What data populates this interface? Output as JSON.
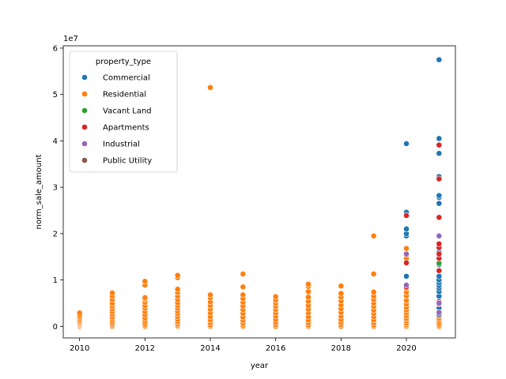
{
  "chart_data": {
    "type": "scatter",
    "title": "",
    "xlabel": "year",
    "ylabel": "norm_sale_amount",
    "y_scale_label": "1e7",
    "xlim": [
      2009.5,
      2021.5
    ],
    "ylim": [
      -2500000,
      60500000
    ],
    "x_ticks": [
      2010,
      2012,
      2014,
      2016,
      2018,
      2020
    ],
    "y_ticks": [
      0,
      10000000,
      20000000,
      30000000,
      40000000,
      50000000,
      60000000
    ],
    "y_tick_labels": [
      "0",
      "1",
      "2",
      "3",
      "4",
      "5",
      "6"
    ],
    "grid": false,
    "legend": {
      "title": "property_type",
      "placement": "top-left"
    },
    "series": [
      {
        "name": "Residential",
        "color": "#ff7f0e",
        "points": [
          [
            2010,
            0
          ],
          [
            2010,
            200000
          ],
          [
            2010,
            400000
          ],
          [
            2010,
            600000
          ],
          [
            2010,
            800000
          ],
          [
            2010,
            1000000
          ],
          [
            2010,
            1300000
          ],
          [
            2010,
            1600000
          ],
          [
            2010,
            2000000
          ],
          [
            2010,
            2400000
          ],
          [
            2010,
            2900000
          ],
          [
            2011,
            0
          ],
          [
            2011,
            300000
          ],
          [
            2011,
            600000
          ],
          [
            2011,
            1000000
          ],
          [
            2011,
            1500000
          ],
          [
            2011,
            2000000
          ],
          [
            2011,
            2600000
          ],
          [
            2011,
            3200000
          ],
          [
            2011,
            3800000
          ],
          [
            2011,
            4400000
          ],
          [
            2011,
            5000000
          ],
          [
            2011,
            5800000
          ],
          [
            2011,
            6500000
          ],
          [
            2011,
            7200000
          ],
          [
            2012,
            0
          ],
          [
            2012,
            300000
          ],
          [
            2012,
            700000
          ],
          [
            2012,
            1200000
          ],
          [
            2012,
            1800000
          ],
          [
            2012,
            2500000
          ],
          [
            2012,
            3200000
          ],
          [
            2012,
            3900000
          ],
          [
            2012,
            4500000
          ],
          [
            2012,
            5200000
          ],
          [
            2012,
            5900000
          ],
          [
            2012,
            6200000
          ],
          [
            2012,
            8900000
          ],
          [
            2012,
            9700000
          ],
          [
            2013,
            0
          ],
          [
            2013,
            200000
          ],
          [
            2013,
            500000
          ],
          [
            2013,
            1000000
          ],
          [
            2013,
            1500000
          ],
          [
            2013,
            2100000
          ],
          [
            2013,
            2700000
          ],
          [
            2013,
            3300000
          ],
          [
            2013,
            3900000
          ],
          [
            2013,
            4500000
          ],
          [
            2013,
            5100000
          ],
          [
            2013,
            5800000
          ],
          [
            2013,
            6500000
          ],
          [
            2013,
            7300000
          ],
          [
            2013,
            8000000
          ],
          [
            2013,
            10500000
          ],
          [
            2013,
            11000000
          ],
          [
            2014,
            0
          ],
          [
            2014,
            300000
          ],
          [
            2014,
            800000
          ],
          [
            2014,
            1400000
          ],
          [
            2014,
            2100000
          ],
          [
            2014,
            2900000
          ],
          [
            2014,
            3700000
          ],
          [
            2014,
            4500000
          ],
          [
            2014,
            5300000
          ],
          [
            2014,
            6200000
          ],
          [
            2014,
            6800000
          ],
          [
            2014,
            51500000
          ],
          [
            2015,
            0
          ],
          [
            2015,
            300000
          ],
          [
            2015,
            700000
          ],
          [
            2015,
            1300000
          ],
          [
            2015,
            2000000
          ],
          [
            2015,
            2800000
          ],
          [
            2015,
            3600000
          ],
          [
            2015,
            4400000
          ],
          [
            2015,
            5200000
          ],
          [
            2015,
            6000000
          ],
          [
            2015,
            6800000
          ],
          [
            2015,
            8500000
          ],
          [
            2015,
            11300000
          ],
          [
            2016,
            0
          ],
          [
            2016,
            400000
          ],
          [
            2016,
            900000
          ],
          [
            2016,
            1500000
          ],
          [
            2016,
            2200000
          ],
          [
            2016,
            2900000
          ],
          [
            2016,
            3600000
          ],
          [
            2016,
            4300000
          ],
          [
            2016,
            5000000
          ],
          [
            2016,
            5700000
          ],
          [
            2016,
            6400000
          ],
          [
            2017,
            0
          ],
          [
            2017,
            300000
          ],
          [
            2017,
            800000
          ],
          [
            2017,
            1400000
          ],
          [
            2017,
            2100000
          ],
          [
            2017,
            2900000
          ],
          [
            2017,
            3700000
          ],
          [
            2017,
            4500000
          ],
          [
            2017,
            5400000
          ],
          [
            2017,
            6300000
          ],
          [
            2017,
            7500000
          ],
          [
            2017,
            8600000
          ],
          [
            2017,
            9100000
          ],
          [
            2018,
            0
          ],
          [
            2018,
            400000
          ],
          [
            2018,
            900000
          ],
          [
            2018,
            1500000
          ],
          [
            2018,
            2200000
          ],
          [
            2018,
            3000000
          ],
          [
            2018,
            3800000
          ],
          [
            2018,
            4600000
          ],
          [
            2018,
            5500000
          ],
          [
            2018,
            6300000
          ],
          [
            2018,
            7100000
          ],
          [
            2018,
            8700000
          ],
          [
            2019,
            0
          ],
          [
            2019,
            300000
          ],
          [
            2019,
            800000
          ],
          [
            2019,
            1400000
          ],
          [
            2019,
            2100000
          ],
          [
            2019,
            2800000
          ],
          [
            2019,
            3500000
          ],
          [
            2019,
            4300000
          ],
          [
            2019,
            5000000
          ],
          [
            2019,
            5800000
          ],
          [
            2019,
            6500000
          ],
          [
            2019,
            7400000
          ],
          [
            2019,
            11300000
          ],
          [
            2019,
            19500000
          ],
          [
            2020,
            0
          ],
          [
            2020,
            300000
          ],
          [
            2020,
            700000
          ],
          [
            2020,
            1200000
          ],
          [
            2020,
            1700000
          ],
          [
            2020,
            2300000
          ],
          [
            2020,
            2900000
          ],
          [
            2020,
            3500000
          ],
          [
            2020,
            4100000
          ],
          [
            2020,
            4800000
          ],
          [
            2020,
            5600000
          ],
          [
            2020,
            6600000
          ],
          [
            2020,
            7400000
          ],
          [
            2020,
            8200000
          ],
          [
            2020,
            14700000
          ],
          [
            2020,
            16800000
          ],
          [
            2021,
            0
          ],
          [
            2021,
            300000
          ],
          [
            2021,
            700000
          ],
          [
            2021,
            1200000
          ],
          [
            2021,
            1700000
          ],
          [
            2021,
            2200000
          ],
          [
            2021,
            2700000
          ]
        ]
      },
      {
        "name": "Commercial",
        "color": "#1f77b4",
        "points": [
          [
            2020,
            10800000
          ],
          [
            2020,
            19500000
          ],
          [
            2020,
            20000000
          ],
          [
            2020,
            21000000
          ],
          [
            2020,
            24600000
          ],
          [
            2020,
            39400000
          ],
          [
            2021,
            2600000
          ],
          [
            2021,
            4000000
          ],
          [
            2021,
            5500000
          ],
          [
            2021,
            6500000
          ],
          [
            2021,
            7500000
          ],
          [
            2021,
            8200000
          ],
          [
            2021,
            8800000
          ],
          [
            2021,
            9400000
          ],
          [
            2021,
            10000000
          ],
          [
            2021,
            10800000
          ],
          [
            2021,
            12000000
          ],
          [
            2021,
            13300000
          ],
          [
            2021,
            16000000
          ],
          [
            2021,
            26500000
          ],
          [
            2021,
            27800000
          ],
          [
            2021,
            28200000
          ],
          [
            2021,
            32000000
          ],
          [
            2021,
            32300000
          ],
          [
            2021,
            37300000
          ],
          [
            2021,
            40500000
          ],
          [
            2021,
            57500000
          ]
        ]
      },
      {
        "name": "Vacant Land",
        "color": "#2ca02c",
        "points": [
          [
            2021,
            13600000
          ]
        ]
      },
      {
        "name": "Apartments",
        "color": "#d62728",
        "points": [
          [
            2020,
            8500000
          ],
          [
            2020,
            13700000
          ],
          [
            2020,
            23900000
          ],
          [
            2021,
            4800000
          ],
          [
            2021,
            5300000
          ],
          [
            2021,
            12000000
          ],
          [
            2021,
            14700000
          ],
          [
            2021,
            15600000
          ],
          [
            2021,
            17000000
          ],
          [
            2021,
            17800000
          ],
          [
            2021,
            23500000
          ],
          [
            2021,
            31800000
          ],
          [
            2021,
            39100000
          ]
        ]
      },
      {
        "name": "Industrial",
        "color": "#9467bd",
        "points": [
          [
            2020,
            8900000
          ],
          [
            2020,
            15600000
          ],
          [
            2021,
            3000000
          ],
          [
            2021,
            5000000
          ],
          [
            2021,
            19500000
          ]
        ]
      },
      {
        "name": "Public Utility",
        "color": "#8c564b",
        "points": []
      }
    ]
  }
}
